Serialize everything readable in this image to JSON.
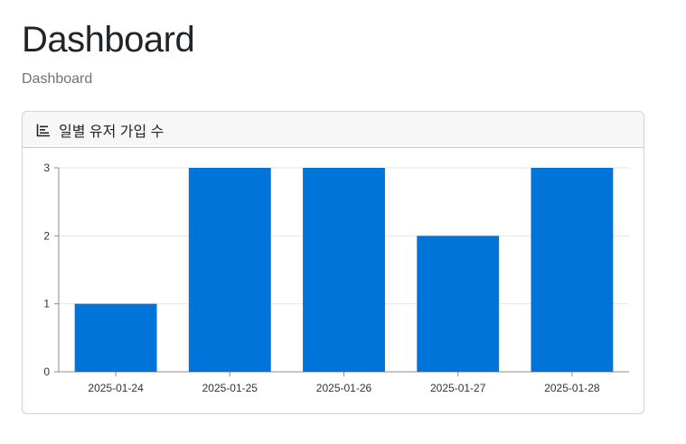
{
  "page": {
    "title": "Dashboard",
    "breadcrumb": "Dashboard"
  },
  "card": {
    "title": "일별 유저 가입 수",
    "icon": "bar-chart-icon"
  },
  "colors": {
    "bar": "#0074d9",
    "grid": "#e6e6e6",
    "axis": "#8c8c8c"
  },
  "chart_data": {
    "type": "bar",
    "categories": [
      "2025-01-24",
      "2025-01-25",
      "2025-01-26",
      "2025-01-27",
      "2025-01-28"
    ],
    "values": [
      1,
      3,
      3,
      2,
      3
    ],
    "title": "일별 유저 가입 수",
    "xlabel": "",
    "ylabel": "",
    "ylim": [
      0,
      3
    ],
    "yticks": [
      0,
      1,
      2,
      3
    ],
    "grid": true,
    "legend": "none"
  }
}
